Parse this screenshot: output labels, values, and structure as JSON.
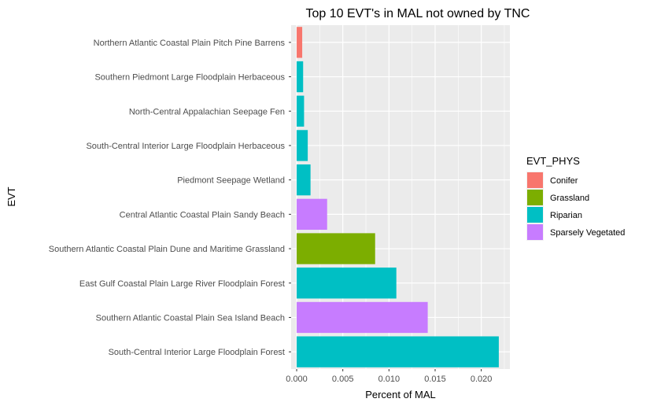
{
  "chart_data": {
    "type": "bar",
    "orientation": "horizontal",
    "title": "Top 10 EVT's in MAL not owned by TNC",
    "xlabel": "Percent of MAL",
    "ylabel": "EVT",
    "xlim": [
      -0.0006,
      0.0231
    ],
    "xticks": [
      0.0,
      0.005,
      0.01,
      0.015,
      0.02
    ],
    "xtick_labels": [
      "0.000",
      "0.005",
      "0.010",
      "0.015",
      "0.020"
    ],
    "grid": true,
    "legend": {
      "title": "EVT_PHYS",
      "position": "right",
      "entries": [
        {
          "name": "Conifer",
          "color": "#F8766D"
        },
        {
          "name": "Grassland",
          "color": "#7CAE00"
        },
        {
          "name": "Riparian",
          "color": "#00BFC4"
        },
        {
          "name": "Sparsely Vegetated",
          "color": "#C77CFF"
        }
      ]
    },
    "bars": [
      {
        "category": "Northern Atlantic Coastal Plain Pitch Pine Barrens",
        "value": 0.0006,
        "group": "Conifer"
      },
      {
        "category": "Southern Piedmont Large Floodplain Herbaceous",
        "value": 0.0007,
        "group": "Riparian"
      },
      {
        "category": "North-Central Appalachian Seepage Fen",
        "value": 0.0008,
        "group": "Riparian"
      },
      {
        "category": "South-Central Interior Large Floodplain Herbaceous",
        "value": 0.0012,
        "group": "Riparian"
      },
      {
        "category": "Piedmont Seepage Wetland",
        "value": 0.0015,
        "group": "Riparian"
      },
      {
        "category": "Central Atlantic Coastal Plain Sandy Beach",
        "value": 0.0033,
        "group": "Sparsely Vegetated"
      },
      {
        "category": "Southern Atlantic Coastal Plain Dune and Maritime Grassland",
        "value": 0.0085,
        "group": "Grassland"
      },
      {
        "category": "East Gulf Coastal Plain Large River Floodplain Forest",
        "value": 0.0108,
        "group": "Riparian"
      },
      {
        "category": "Southern Atlantic Coastal Plain Sea Island Beach",
        "value": 0.0142,
        "group": "Sparsely Vegetated"
      },
      {
        "category": "South-Central Interior Large Floodplain Forest",
        "value": 0.0219,
        "group": "Riparian"
      }
    ]
  }
}
